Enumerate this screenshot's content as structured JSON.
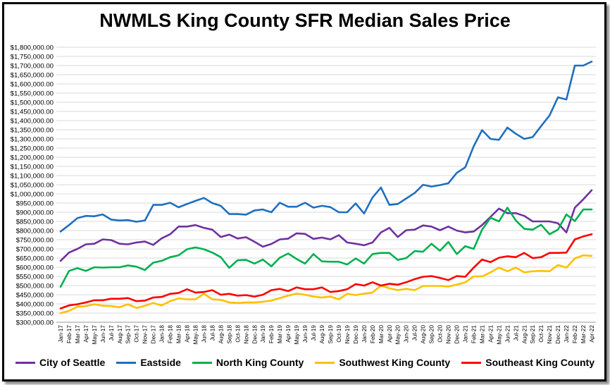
{
  "chart_data": {
    "type": "line",
    "title": "NWMLS King County SFR Median Sales Price",
    "xlabel": "",
    "ylabel": "",
    "ylim": [
      300000,
      1800000
    ],
    "ytick_step": 50000,
    "grid": true,
    "legend_position": "bottom",
    "categories": [
      "Jan-17",
      "Feb-17",
      "Mar-17",
      "Apr-17",
      "May-17",
      "Jun-17",
      "Jul-17",
      "Aug-17",
      "Sep-17",
      "Oct-17",
      "Nov-17",
      "Dec-17",
      "Jan-18",
      "Feb-18",
      "Mar-18",
      "Apr-18",
      "May-18",
      "Jun-18",
      "Jul-18",
      "Aug-18",
      "Sep-18",
      "Oct-18",
      "Nov-18",
      "Dec-18",
      "Jan-19",
      "Feb-19",
      "Mar-19",
      "Apr-19",
      "May-19",
      "Jun-19",
      "Jul-19",
      "Aug-19",
      "Sep-19",
      "Oct-19",
      "Nov-19",
      "Dec-19",
      "Jan-20",
      "Feb-20",
      "Mar-20",
      "Apr-20",
      "May-20",
      "Jun-20",
      "Jul-20",
      "Aug-20",
      "Sep-20",
      "Oct-20",
      "Nov-20",
      "Dec-20",
      "Jan-21",
      "Feb-21",
      "Mar-21",
      "Apr-21",
      "May-21",
      "Jun-21",
      "Jul-21",
      "Aug-21",
      "Sep-21",
      "Oct-21",
      "Nov-21",
      "Dec-21",
      "Jan-22",
      "Feb-22",
      "Mar-22",
      "Apr-22"
    ],
    "series": [
      {
        "name": "City of Seattle",
        "color": "#7030a0",
        "values": [
          635000,
          680000,
          700000,
          725000,
          728000,
          752000,
          748000,
          728000,
          725000,
          735000,
          740000,
          722000,
          758000,
          780000,
          822000,
          822000,
          830000,
          815000,
          805000,
          765000,
          778000,
          757000,
          764000,
          739000,
          712000,
          727000,
          752000,
          756000,
          785000,
          782000,
          755000,
          762000,
          752000,
          775000,
          735000,
          728000,
          720000,
          735000,
          790000,
          815000,
          765000,
          802000,
          805000,
          828000,
          822000,
          802000,
          822000,
          800000,
          790000,
          795000,
          830000,
          875000,
          920000,
          895000,
          895000,
          880000,
          850000,
          850000,
          850000,
          840000,
          790000,
          925000,
          970000,
          1020000
        ]
      },
      {
        "name": "Eastside",
        "color": "#1f6fbf",
        "values": [
          795000,
          830000,
          868000,
          880000,
          878000,
          888000,
          860000,
          855000,
          857000,
          848000,
          855000,
          940000,
          940000,
          952000,
          927000,
          945000,
          962000,
          978000,
          950000,
          935000,
          890000,
          890000,
          887000,
          910000,
          915000,
          900000,
          952000,
          930000,
          930000,
          952000,
          925000,
          935000,
          928000,
          900000,
          900000,
          948000,
          893000,
          980000,
          1035000,
          940000,
          945000,
          975000,
          1005000,
          1050000,
          1040000,
          1048000,
          1058000,
          1115000,
          1145000,
          1260000,
          1348000,
          1300000,
          1295000,
          1362000,
          1328000,
          1300000,
          1310000,
          1370000,
          1428000,
          1527000,
          1515000,
          1700000,
          1700000,
          1722000
        ]
      },
      {
        "name": "North King County",
        "color": "#00b050",
        "values": [
          493000,
          580000,
          595000,
          580000,
          600000,
          598000,
          600000,
          600000,
          610000,
          603000,
          585000,
          625000,
          635000,
          655000,
          665000,
          698000,
          708000,
          698000,
          680000,
          655000,
          597000,
          638000,
          640000,
          620000,
          642000,
          605000,
          652000,
          675000,
          645000,
          620000,
          672000,
          632000,
          630000,
          630000,
          615000,
          648000,
          620000,
          672000,
          678000,
          678000,
          640000,
          650000,
          688000,
          685000,
          728000,
          690000,
          738000,
          672000,
          715000,
          700000,
          805000,
          870000,
          850000,
          925000,
          855000,
          810000,
          805000,
          832000,
          780000,
          805000,
          888000,
          852000,
          915000,
          915000
        ]
      },
      {
        "name": "Southwest King County",
        "color": "#ffc000",
        "values": [
          350000,
          362000,
          385000,
          388000,
          398000,
          390000,
          388000,
          382000,
          398000,
          378000,
          390000,
          405000,
          392000,
          415000,
          430000,
          425000,
          425000,
          455000,
          425000,
          422000,
          408000,
          405000,
          408000,
          408000,
          412000,
          418000,
          432000,
          445000,
          456000,
          450000,
          440000,
          435000,
          440000,
          425000,
          455000,
          448000,
          456000,
          462000,
          500000,
          485000,
          475000,
          482000,
          475000,
          498000,
          498000,
          498000,
          495000,
          505000,
          518000,
          550000,
          550000,
          572000,
          598000,
          578000,
          598000,
          572000,
          578000,
          580000,
          578000,
          612000,
          598000,
          648000,
          665000,
          662000
        ]
      },
      {
        "name": "Southeast King County",
        "color": "#ff0000",
        "values": [
          375000,
          392000,
          398000,
          408000,
          420000,
          420000,
          428000,
          428000,
          432000,
          415000,
          418000,
          435000,
          438000,
          455000,
          460000,
          480000,
          462000,
          465000,
          475000,
          450000,
          455000,
          445000,
          448000,
          440000,
          450000,
          475000,
          482000,
          470000,
          490000,
          480000,
          480000,
          490000,
          465000,
          470000,
          480000,
          508000,
          500000,
          518000,
          500000,
          510000,
          505000,
          518000,
          535000,
          548000,
          552000,
          542000,
          530000,
          552000,
          548000,
          598000,
          642000,
          628000,
          652000,
          660000,
          655000,
          678000,
          650000,
          655000,
          678000,
          678000,
          680000,
          752000,
          768000,
          780000
        ]
      }
    ]
  }
}
